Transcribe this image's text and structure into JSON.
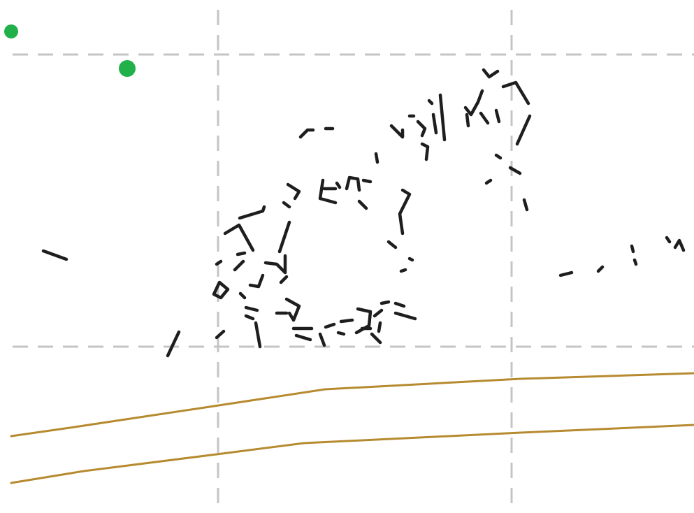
{
  "map": {
    "colors": {
      "background": "#ffffff",
      "grid": "#c4c4c4",
      "road": "#b68a2f",
      "building": "#1e1e1e",
      "marker": "#22b04b"
    },
    "features": {
      "grid": "dashed",
      "roads": 2,
      "markers": 2
    }
  }
}
